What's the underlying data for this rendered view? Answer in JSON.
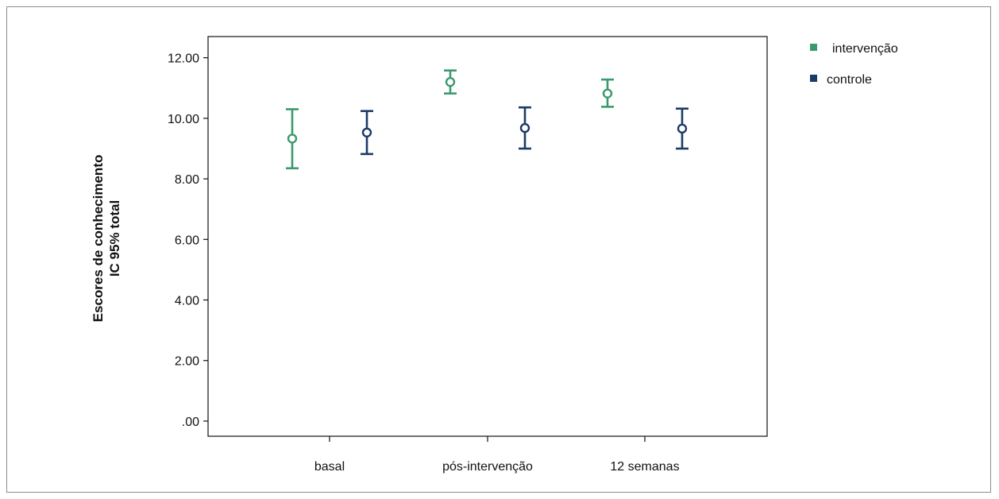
{
  "chart_data": {
    "type": "errorbar",
    "title": "",
    "xlabel": "",
    "ylabel_lines": [
      "Escores de conhecimento",
      "IC 95% total"
    ],
    "categories": [
      "basal",
      "pós-intervenção",
      "12 semanas"
    ],
    "ylim": [
      -0.5,
      12.7
    ],
    "yticks": [
      0,
      2,
      4,
      6,
      8,
      10,
      12
    ],
    "ytick_labels": [
      ".00",
      "2.00",
      "4.00",
      "6.00",
      "8.00",
      "10.00",
      "12.00"
    ],
    "grid": false,
    "legend_position": "outside-top-right",
    "series": [
      {
        "name": "intervenção",
        "color": "#3a9a6e",
        "mean": [
          9.33,
          11.2,
          10.82
        ],
        "lower": [
          8.35,
          10.82,
          10.38
        ],
        "upper": [
          10.3,
          11.58,
          11.28
        ]
      },
      {
        "name": "controle",
        "color": "#1b3a66",
        "mean": [
          9.53,
          9.68,
          9.66
        ],
        "lower": [
          8.82,
          9.0,
          9.0
        ],
        "upper": [
          10.24,
          10.36,
          10.32
        ]
      }
    ]
  }
}
